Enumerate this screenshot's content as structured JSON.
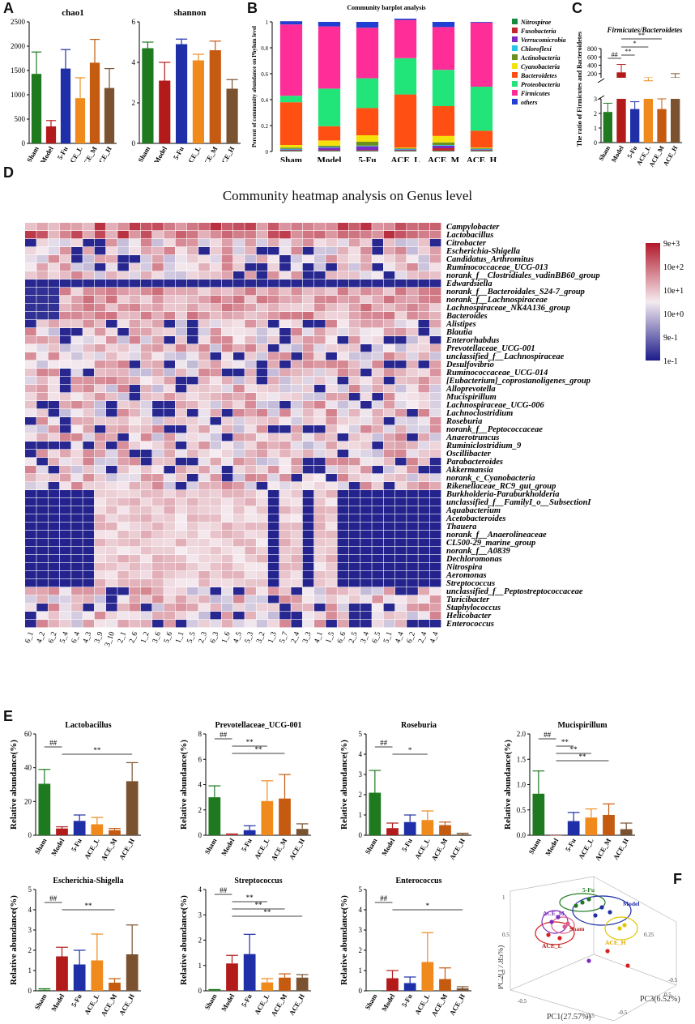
{
  "panel_letters": {
    "a": "A",
    "b": "B",
    "c": "C",
    "d": "D",
    "e": "E",
    "f": "F"
  },
  "groups": [
    "Sham",
    "Model",
    "5-Fu",
    "ACE_L",
    "ACE_M",
    "ACE_H"
  ],
  "colors": {
    "Sham": "#1f7a1f",
    "Model": "#b31b1b",
    "5-Fu": "#1f2fa8",
    "ACE_L": "#f08a1c",
    "ACE_M": "#c55a11",
    "ACE_H": "#7a5230",
    "heat_low": "#1b1b8a",
    "heat_mid": "#ffffff",
    "heat_high": "#b2182b"
  },
  "heatmap": {
    "title": "Community heatmap analysis on Genus level",
    "genera": [
      "Campylobacter",
      "Lactobacillus",
      "Citrobacter",
      "Escherichia-Shigella",
      "Candidatus_Arthromitus",
      "Ruminococcaceae_UCG-013",
      "norank_f__Clostridiales_vadinBB60_group",
      "Edwardsiella",
      "norank_f__Bacteroidales_S24-7_group",
      "norank_f__Lachnospiraceae",
      "Lachnospiraceae_NK4A136_group",
      "Bacteroides",
      "Alistipes",
      "Blautia",
      "Enterorhabdus",
      "Prevotellaceae_UCG-001",
      "unclassified_f__Lachnospiraceae",
      "Desulfovibrio",
      "Ruminococcaceae_UCG-014",
      "[Eubacterium]_coprostanoligenes_group",
      "Alloprevotella",
      "Mucispirillum",
      "Lachnospiraceae_UCG-006",
      "Lachnoclostridium",
      "Roseburia",
      "norank_f__Peptococcaceae",
      "Anaerotruncus",
      "Ruminiclostridium_9",
      "Oscillibacter",
      "Parabacteroides",
      "Akkermansia",
      "norank_c_Cyanobacteria",
      "Rikenellaceae_RC9_gut_group",
      "Burkholderia-Paraburkholderia",
      "unclassified_f__FamilyI_o__SubsectionI",
      "Aquabacterium",
      "Acetobacteroides",
      "Thauera",
      "norank_f__Anaerolineaceae",
      "CL500-29_marine_group",
      "norank_f__A0839",
      "Dechloromonas",
      "Nitrospira",
      "Aeromonas",
      "Streptococcus",
      "unclassified_f__Peptostreptococcaceae",
      "Turicibacter",
      "Staphylococcus",
      "Helicobacter",
      "Enterococcus"
    ],
    "samples": [
      "6_1",
      "4_2",
      "6_2",
      "5_4",
      "6_4",
      "4_3",
      "3_9",
      "3_10",
      "2_1",
      "2_6",
      "1_2",
      "3_6",
      "5_6",
      "1_1",
      "5_5",
      "2_3",
      "6_3",
      "1_6",
      "4_5",
      "5_3",
      "3_2",
      "1_3",
      "5_7",
      "2_4",
      "3_3",
      "4_1",
      "1_5",
      "6_6",
      "2_5",
      "3_4",
      "6_5",
      "5_1",
      "4_4",
      "6_2",
      "2_4",
      "4_4"
    ],
    "legend": [
      "9e+3",
      "10e+2",
      "10e+1",
      "10e+0",
      "9e-1",
      "1e-1"
    ]
  },
  "panelA": {
    "charts": [
      {
        "title": "chao1",
        "ylim": [
          0,
          2500
        ],
        "ticks": [
          "0",
          "500",
          "1000",
          "1500",
          "2000",
          "2500"
        ],
        "values": [
          1430,
          350,
          1540,
          930,
          1660,
          1140
        ],
        "err": [
          450,
          120,
          390,
          420,
          480,
          400
        ]
      },
      {
        "title": "shannon",
        "ylim": [
          0,
          6
        ],
        "ticks": [
          "0",
          "2",
          "4",
          "6"
        ],
        "values": [
          4.7,
          3.1,
          4.9,
          4.1,
          4.6,
          2.7
        ],
        "err": [
          0.3,
          0.9,
          0.25,
          0.3,
          0.45,
          0.45
        ]
      }
    ]
  },
  "panelB": {
    "type": "stacked-bar",
    "title": "Community barplot analysis",
    "ylabel": "Percent of community abundance on Phylum level",
    "ticks": [
      "0",
      "0.2",
      "0.4",
      "0.6",
      "0.8",
      "1"
    ],
    "phyla": [
      "Nitrospirae",
      "Fusobacteria",
      "Verrucomicrobia",
      "Chloroflexi",
      "Actinobacteria",
      "Cyanobacteria",
      "Bacteroidetes",
      "Proteobacteria",
      "Firmicutes",
      "others"
    ],
    "phylum_colors": [
      "#138a3c",
      "#c1272d",
      "#7b2cbf",
      "#27c4e6",
      "#6a8f1e",
      "#f5e10a",
      "#ff4f12",
      "#22e57a",
      "#ff2d98",
      "#1e3fd1"
    ],
    "values": [
      [
        0.005,
        0.005,
        0.005,
        0.005,
        0.01,
        0.02,
        0.33,
        0.05,
        0.55,
        0.025
      ],
      [
        0.005,
        0.005,
        0.02,
        0.005,
        0.01,
        0.04,
        0.11,
        0.29,
        0.48,
        0.035
      ],
      [
        0.005,
        0.005,
        0.03,
        0.005,
        0.03,
        0.05,
        0.21,
        0.23,
        0.39,
        0.045
      ],
      [
        0.005,
        0.005,
        0.005,
        0.005,
        0.005,
        0.005,
        0.41,
        0.28,
        0.295,
        0.01
      ],
      [
        0.005,
        0.02,
        0.02,
        0.005,
        0.02,
        0.05,
        0.23,
        0.28,
        0.33,
        0.04
      ],
      [
        0.005,
        0.005,
        0.005,
        0.005,
        0.005,
        0.005,
        0.13,
        0.34,
        0.495,
        0.005
      ]
    ]
  },
  "panelC": {
    "title": "Firmicutes/Bacteroidetes",
    "ylabel": "The ratio of Firmicutes and Bacteroidetes",
    "ticks_upper": [
      "200",
      "400",
      "600",
      "800"
    ],
    "ticks_lower": [
      "0",
      "1",
      "2",
      "3"
    ],
    "values": [
      2.1,
      230,
      2.3,
      3.1,
      2.3,
      110
    ],
    "err": [
      0.6,
      190,
      0.5,
      25,
      0.7,
      90
    ],
    "sig": [
      "##",
      "**",
      "*",
      "**"
    ]
  },
  "panelE": {
    "ylabel": "Relative abundance(%)",
    "charts": [
      {
        "title": "Lactobacillus",
        "ymax": 60,
        "ticks": [
          "0",
          "20",
          "40",
          "60"
        ],
        "values": [
          30.5,
          4.0,
          8.5,
          6.5,
          3.0,
          32.0
        ],
        "err": [
          8.5,
          1.0,
          3.5,
          4.0,
          1.0,
          11.0
        ],
        "sig": [
          [
            "##",
            0,
            1
          ],
          [
            "**",
            1,
            5
          ]
        ]
      },
      {
        "title": "Prevotellaceae_UCG-001",
        "ymax": 8,
        "ticks": [
          "0",
          "2",
          "4",
          "6",
          "8"
        ],
        "values": [
          3.0,
          0.05,
          0.4,
          2.7,
          2.9,
          0.5
        ],
        "err": [
          0.9,
          0.05,
          0.35,
          1.6,
          1.9,
          0.4
        ],
        "sig": [
          [
            "##",
            0,
            1
          ],
          [
            "**",
            1,
            3
          ],
          [
            "**",
            1,
            4
          ]
        ]
      },
      {
        "title": "Roseburia",
        "ymax": 5,
        "ticks": [
          "0",
          "1",
          "2",
          "3",
          "4",
          "5"
        ],
        "values": [
          2.1,
          0.35,
          0.65,
          0.75,
          0.5,
          0.05
        ],
        "err": [
          1.1,
          0.25,
          0.35,
          0.45,
          0.15,
          0.05
        ],
        "sig": [
          [
            "##",
            0,
            1
          ],
          [
            "*",
            1,
            3
          ]
        ]
      },
      {
        "title": "Mucispirillum",
        "ymax": 2.0,
        "ticks": [
          "0.0",
          "0.5",
          "1.0",
          "1.5",
          "2.0"
        ],
        "values": [
          0.82,
          0.0,
          0.28,
          0.35,
          0.4,
          0.12
        ],
        "err": [
          0.45,
          0.0,
          0.17,
          0.17,
          0.22,
          0.12
        ],
        "sig": [
          [
            "##",
            0,
            1
          ],
          [
            "**",
            1,
            2
          ],
          [
            "**",
            1,
            3
          ],
          [
            "**",
            1,
            4
          ]
        ]
      },
      {
        "title": "Escherichia-Shigella",
        "ymax": 5,
        "ticks": [
          "0",
          "1",
          "2",
          "3",
          "4",
          "5"
        ],
        "values": [
          0.05,
          1.7,
          1.3,
          1.5,
          0.4,
          1.8
        ],
        "err": [
          0.05,
          0.45,
          0.7,
          1.3,
          0.2,
          1.45
        ],
        "sig": [
          [
            "##",
            0,
            1
          ],
          [
            "**",
            1,
            4
          ]
        ]
      },
      {
        "title": "Streptococcus",
        "ymax": 4,
        "ticks": [
          "0",
          "1",
          "2",
          "3",
          "4"
        ],
        "values": [
          0.03,
          1.08,
          1.45,
          0.33,
          0.52,
          0.52
        ],
        "err": [
          0.02,
          0.32,
          0.78,
          0.15,
          0.15,
          0.12
        ],
        "sig": [
          [
            "##",
            0,
            1
          ],
          [
            "**",
            1,
            3
          ],
          [
            "**",
            1,
            4
          ],
          [
            "**",
            1,
            5
          ]
        ]
      },
      {
        "title": "Enterococcus",
        "ymax": 5,
        "ticks": [
          "0",
          "1",
          "2",
          "3",
          "4",
          "5"
        ],
        "values": [
          0.0,
          0.62,
          0.38,
          1.42,
          0.58,
          0.12
        ],
        "err": [
          0.0,
          0.38,
          0.3,
          1.45,
          0.55,
          0.08
        ],
        "sig": [
          [
            "##",
            0,
            1
          ],
          [
            "*",
            1,
            5
          ]
        ]
      }
    ]
  },
  "panelF": {
    "xlabel": "PC1(27.57%)",
    "ylabel": "PC2(17.85%)",
    "zlabel": "PC3(6.52%)",
    "group_labels": [
      "5-Fu",
      "Model",
      "ACE_M",
      "Sham",
      "ACE_H",
      "ACE_L"
    ],
    "ticks": [
      "-0.5",
      "0.5",
      "1",
      "0.5",
      "0",
      "-0.5",
      "0.5",
      "-0.5",
      "0.25"
    ]
  }
}
